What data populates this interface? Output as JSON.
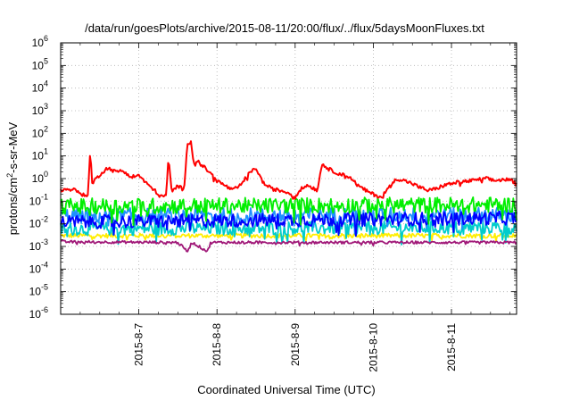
{
  "chart_data": {
    "type": "line",
    "title": "/data/run/goesPlots/archive/2015-08-11/20:00/flux/../flux/5daysMoonFluxes.txt",
    "xlabel": "Coordinated Universal Time (UTC)",
    "ylabel": {
      "base": "protons/cm",
      "sup": "2",
      "rest": "-s-sr-MeV"
    },
    "y_scale": "log",
    "ylim": [
      1e-06,
      1000000.0
    ],
    "xlim": [
      "2015-08-06 00:00",
      "2015-08-11 20:00"
    ],
    "x_ticks": [
      "2015-8-7",
      "2015-8-8",
      "2015-8-9",
      "2015-8-10",
      "2015-8-11"
    ],
    "y_ticks": [
      {
        "base": "10",
        "exp": "6"
      },
      {
        "base": "10",
        "exp": "5"
      },
      {
        "base": "10",
        "exp": "4"
      },
      {
        "base": "10",
        "exp": "3"
      },
      {
        "base": "10",
        "exp": "2"
      },
      {
        "base": "10",
        "exp": "1"
      },
      {
        "base": "10",
        "exp": "0"
      },
      {
        "base": "10",
        "exp": "-1"
      },
      {
        "base": "10",
        "exp": "-2"
      },
      {
        "base": "10",
        "exp": "-3"
      },
      {
        "base": "10",
        "exp": "-4"
      },
      {
        "base": "10",
        "exp": "-5"
      },
      {
        "base": "10",
        "exp": "-6"
      }
    ],
    "grid": true,
    "legend": "none",
    "series": [
      {
        "color": "#ff0000",
        "noise": 0.08,
        "points": [
          [
            0.0,
            0.3
          ],
          [
            0.15,
            0.35
          ],
          [
            0.3,
            0.18
          ],
          [
            0.35,
            0.2
          ],
          [
            0.38,
            20
          ],
          [
            0.4,
            0.6
          ],
          [
            0.5,
            1.5
          ],
          [
            0.6,
            3
          ],
          [
            0.7,
            2
          ],
          [
            0.8,
            2.3
          ],
          [
            0.9,
            1.2
          ],
          [
            1.0,
            1.4
          ],
          [
            1.1,
            0.6
          ],
          [
            1.2,
            0.3
          ],
          [
            1.3,
            0.15
          ],
          [
            1.35,
            0.2
          ],
          [
            1.38,
            8
          ],
          [
            1.42,
            0.25
          ],
          [
            1.5,
            0.5
          ],
          [
            1.58,
            0.3
          ],
          [
            1.62,
            40
          ],
          [
            1.67,
            40
          ],
          [
            1.7,
            5
          ],
          [
            1.75,
            6
          ],
          [
            1.8,
            4
          ],
          [
            1.9,
            2
          ],
          [
            2.0,
            0.8
          ],
          [
            2.1,
            0.5
          ],
          [
            2.2,
            0.3
          ],
          [
            2.3,
            0.5
          ],
          [
            2.4,
            1.5
          ],
          [
            2.5,
            3
          ],
          [
            2.55,
            1.2
          ],
          [
            2.6,
            0.6
          ],
          [
            2.7,
            0.35
          ],
          [
            2.8,
            0.3
          ],
          [
            2.9,
            0.25
          ],
          [
            3.0,
            0.15
          ],
          [
            3.05,
            0.3
          ],
          [
            3.15,
            0.5
          ],
          [
            3.2,
            0.45
          ],
          [
            3.28,
            0.3
          ],
          [
            3.35,
            5
          ],
          [
            3.4,
            3
          ],
          [
            3.5,
            2
          ],
          [
            3.6,
            1.5
          ],
          [
            3.7,
            1.2
          ],
          [
            3.8,
            0.5
          ],
          [
            3.9,
            0.3
          ],
          [
            4.0,
            0.2
          ],
          [
            4.1,
            0.15
          ],
          [
            4.2,
            0.4
          ],
          [
            4.3,
            1.0
          ],
          [
            4.4,
            0.8
          ],
          [
            4.5,
            0.6
          ],
          [
            4.6,
            0.4
          ],
          [
            4.7,
            0.3
          ],
          [
            4.8,
            0.35
          ],
          [
            4.9,
            0.5
          ],
          [
            5.0,
            0.6
          ],
          [
            5.1,
            0.7
          ],
          [
            5.25,
            0.8
          ],
          [
            5.35,
            0.9
          ],
          [
            5.45,
            1.0
          ],
          [
            5.55,
            0.8
          ],
          [
            5.65,
            0.9
          ],
          [
            5.75,
            0.9
          ],
          [
            5.83,
            0.55
          ]
        ]
      },
      {
        "color": "#00ee00",
        "noise": 0.35,
        "points": [
          [
            0,
            0.06
          ],
          [
            5.83,
            0.07
          ]
        ]
      },
      {
        "color": "#0000ff",
        "noise": 0.3,
        "points": [
          [
            0,
            0.012
          ],
          [
            5.83,
            0.018
          ]
        ]
      },
      {
        "color": "#1e90ff",
        "noise": 0.35,
        "points": [
          [
            0,
            0.022
          ],
          [
            5.83,
            0.025
          ]
        ]
      },
      {
        "color": "#00cccc",
        "noise": 0.3,
        "points": [
          [
            0,
            0.006
          ],
          [
            5.83,
            0.007
          ]
        ]
      },
      {
        "color": "#ffee00",
        "noise": 0.1,
        "points": [
          [
            0,
            0.003
          ],
          [
            5.83,
            0.003
          ]
        ]
      },
      {
        "color": "#a01878",
        "noise": 0.06,
        "points": [
          [
            0,
            0.0016
          ],
          [
            1.5,
            0.0015
          ],
          [
            1.62,
            0.0006
          ],
          [
            1.68,
            0.0015
          ],
          [
            1.88,
            0.0006
          ],
          [
            1.92,
            0.0015
          ],
          [
            5.83,
            0.0015
          ]
        ]
      }
    ]
  }
}
